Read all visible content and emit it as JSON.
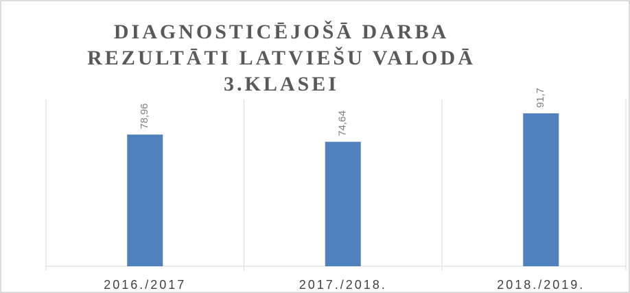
{
  "chart_data": {
    "type": "bar",
    "title": "DIAGNOSTICĒJOŠĀ DARBA REZULTĀTI LATVIEŠU VALODĀ 3.KLASEI",
    "categories": [
      "2016./2017",
      "2017./2018.",
      "2018./2019."
    ],
    "values": [
      78.96,
      74.64,
      91.7
    ],
    "value_labels": [
      "78,96",
      "74,64",
      "91,7"
    ],
    "color": "#4f81bd",
    "ylim": [
      0,
      100
    ]
  }
}
